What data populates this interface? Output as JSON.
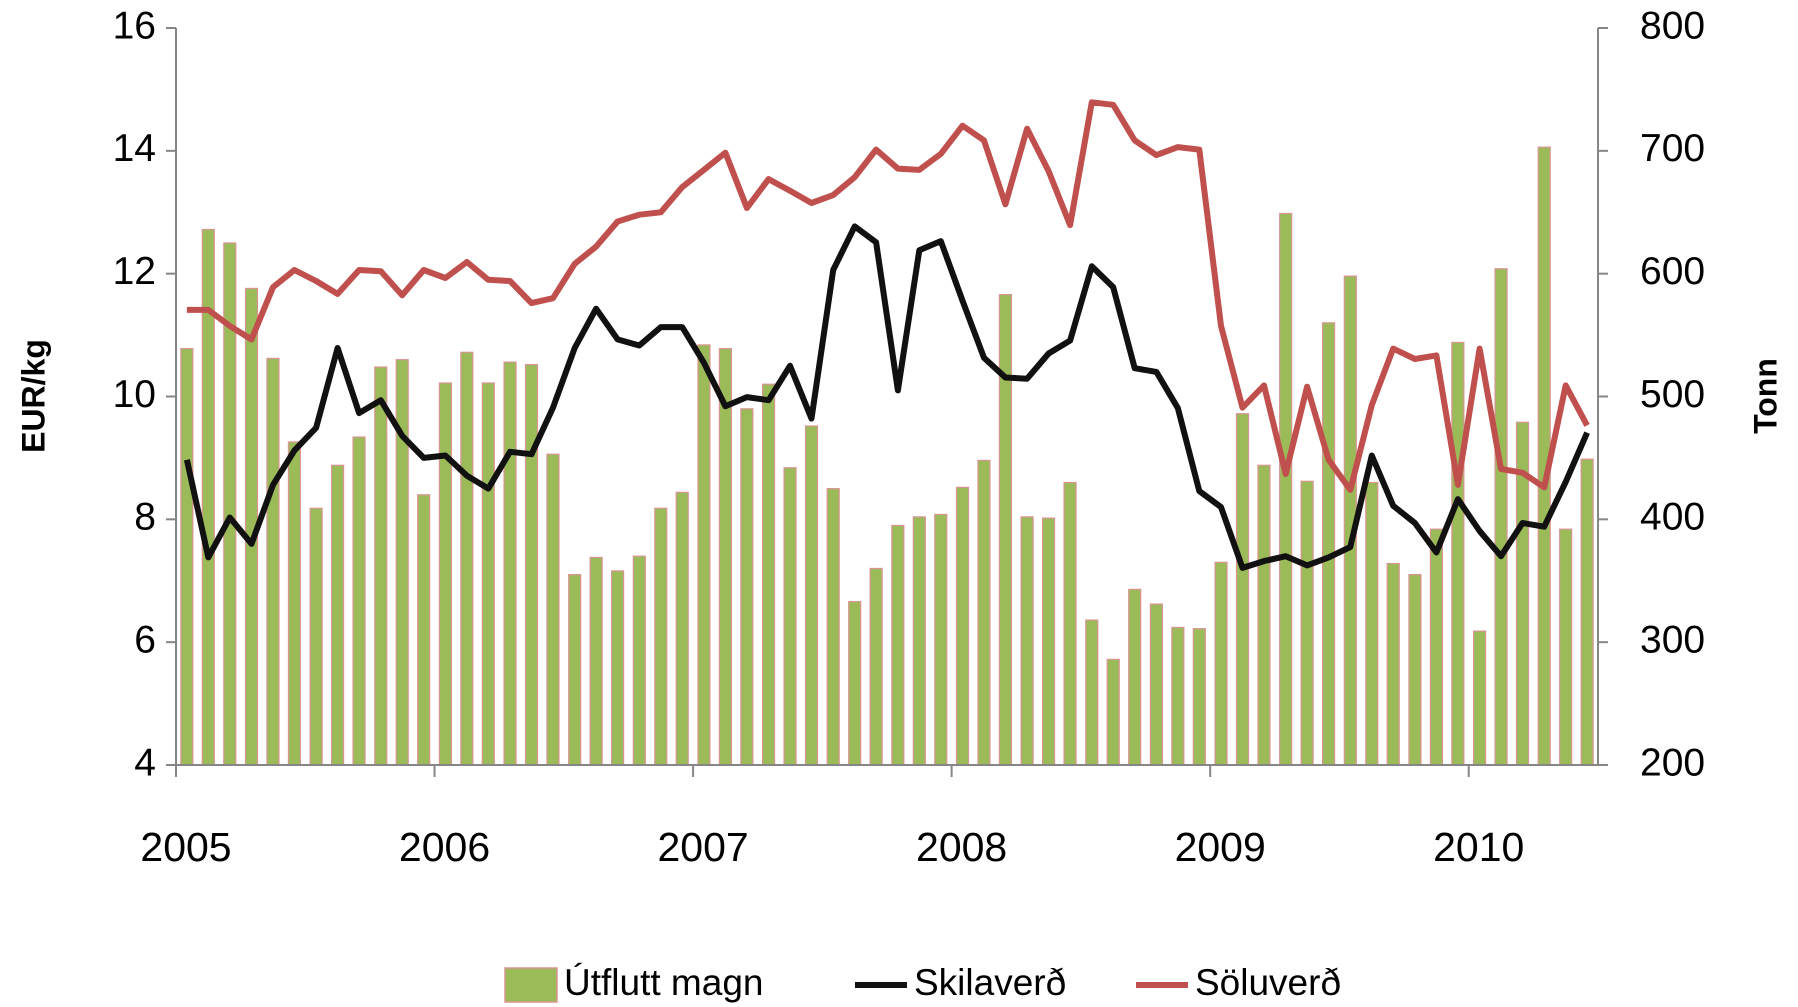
{
  "chart_data": {
    "type": "bar",
    "ylabel": "EUR/kg",
    "y2label": "Tonn",
    "x": [
      2005.042,
      2005.125,
      2005.208,
      2005.292,
      2005.375,
      2005.458,
      2005.542,
      2005.625,
      2005.708,
      2005.792,
      2005.875,
      2005.958,
      2006.042,
      2006.125,
      2006.208,
      2006.292,
      2006.375,
      2006.458,
      2006.542,
      2006.625,
      2006.708,
      2006.792,
      2006.875,
      2006.958,
      2007.042,
      2007.125,
      2007.208,
      2007.292,
      2007.375,
      2007.458,
      2007.542,
      2007.625,
      2007.708,
      2007.792,
      2007.875,
      2007.958,
      2008.042,
      2008.125,
      2008.208,
      2008.292,
      2008.375,
      2008.458,
      2008.542,
      2008.625,
      2008.708,
      2008.792,
      2008.875,
      2008.958,
      2009.042,
      2009.125,
      2009.208,
      2009.292,
      2009.375,
      2009.458,
      2009.542,
      2009.625,
      2009.708,
      2009.792,
      2009.875,
      2009.958,
      2010.042,
      2010.125,
      2010.208,
      2010.292,
      2010.375,
      2010.458
    ],
    "xlim": [
      2005,
      2010.5
    ],
    "xticks": [
      2005,
      2006,
      2007,
      2008,
      2009,
      2010
    ],
    "ylim": [
      4,
      16
    ],
    "yticks": [
      4,
      6,
      8,
      10,
      12,
      14,
      16
    ],
    "y2lim": [
      200,
      800
    ],
    "y2ticks": [
      200,
      300,
      400,
      500,
      600,
      700,
      800
    ],
    "legend": "bottom",
    "series": [
      {
        "name": "Útflutt magn",
        "type": "bar",
        "axis": "y2",
        "color": "#9bbb59",
        "edge": "#d99594",
        "values": [
          539,
          636,
          625,
          588,
          531,
          463,
          409,
          444,
          467,
          524,
          530,
          420,
          511,
          536,
          511,
          528,
          526,
          453,
          355,
          369,
          358,
          370,
          409,
          422,
          542,
          539,
          490,
          510,
          442,
          476,
          425,
          333,
          360,
          395,
          402,
          404,
          426,
          448,
          583,
          402,
          401,
          430,
          318,
          286,
          343,
          331,
          312,
          311,
          365,
          486,
          444,
          649,
          431,
          560,
          598,
          430,
          364,
          355,
          392,
          544,
          309,
          604,
          479,
          703,
          392,
          449
        ]
      },
      {
        "name": "Skilaverð",
        "type": "line",
        "color": "#111111",
        "values": [
          8.97,
          7.38,
          8.03,
          7.6,
          8.56,
          9.12,
          9.49,
          10.79,
          9.73,
          9.94,
          9.36,
          9.0,
          9.04,
          8.71,
          8.5,
          9.1,
          9.06,
          9.82,
          10.79,
          11.43,
          10.93,
          10.83,
          11.13,
          11.13,
          10.55,
          9.84,
          9.99,
          9.94,
          10.5,
          9.64,
          12.06,
          12.77,
          12.51,
          10.1,
          12.38,
          12.53,
          11.56,
          10.63,
          10.31,
          10.29,
          10.7,
          10.91,
          12.12,
          11.78,
          10.46,
          10.4,
          9.81,
          8.46,
          8.2,
          7.21,
          7.32,
          7.4,
          7.25,
          7.38,
          7.55,
          9.04,
          8.22,
          7.94,
          7.46,
          8.33,
          7.81,
          7.4,
          7.94,
          7.88,
          8.61,
          9.41
        ]
      },
      {
        "name": "Söluverð",
        "type": "line",
        "color": "#c0504d",
        "values": [
          11.41,
          11.41,
          11.15,
          10.93,
          11.78,
          12.06,
          11.88,
          11.67,
          12.06,
          12.04,
          11.65,
          12.06,
          11.93,
          12.19,
          11.9,
          11.88,
          11.52,
          11.6,
          12.16,
          12.44,
          12.85,
          12.96,
          13.0,
          13.41,
          13.69,
          13.97,
          13.07,
          13.54,
          13.35,
          13.15,
          13.28,
          13.57,
          14.02,
          13.71,
          13.69,
          13.95,
          14.41,
          14.17,
          13.13,
          14.36,
          13.67,
          12.79,
          14.79,
          14.75,
          14.17,
          13.93,
          14.06,
          14.02,
          11.15,
          9.82,
          10.18,
          8.74,
          10.16,
          8.97,
          8.48,
          9.86,
          10.78,
          10.61,
          10.67,
          8.56,
          10.78,
          8.82,
          8.76,
          8.52,
          10.18,
          9.53
        ]
      }
    ]
  }
}
